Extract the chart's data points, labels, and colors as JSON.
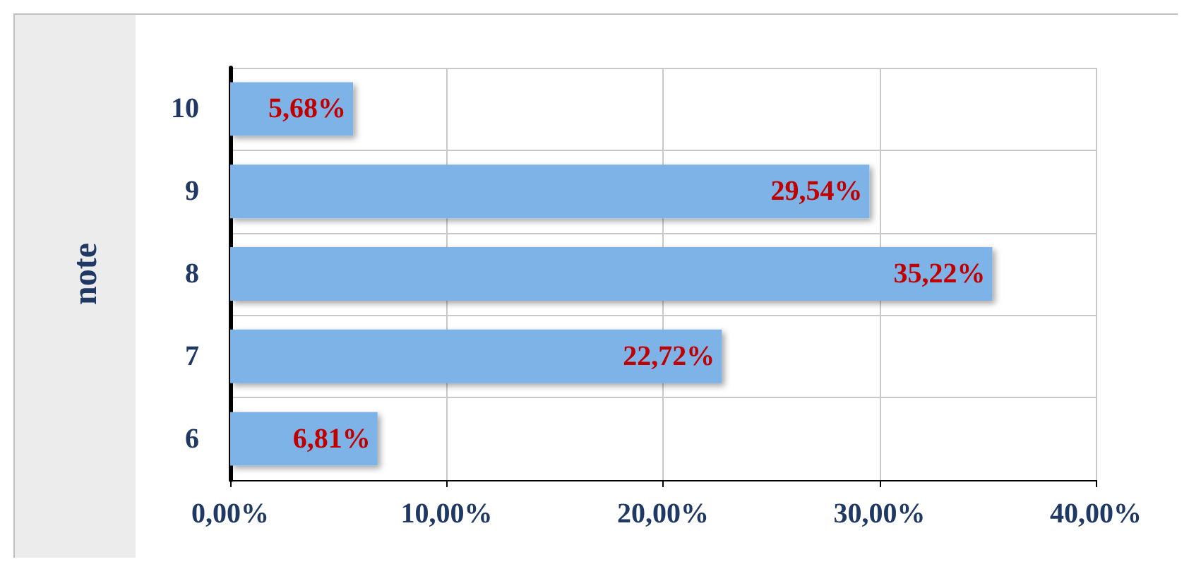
{
  "chart_data": {
    "type": "bar",
    "orientation": "horizontal",
    "ylabel": "note",
    "categories": [
      "10",
      "9",
      "8",
      "7",
      "6"
    ],
    "values": [
      5.68,
      29.54,
      35.22,
      22.72,
      6.81
    ],
    "value_labels": [
      "5,68%",
      "29,54%",
      "35,22%",
      "22,72%",
      "6,81%"
    ],
    "color": "#7db3e6",
    "xlim": [
      0,
      40
    ],
    "xticks": [
      {
        "value": 0,
        "label": "0,00%"
      },
      {
        "value": 10,
        "label": "10,00%"
      },
      {
        "value": 20,
        "label": "20,00%"
      },
      {
        "value": 30,
        "label": "30,00%"
      },
      {
        "value": 40,
        "label": "40,00%"
      }
    ],
    "grid": true
  }
}
